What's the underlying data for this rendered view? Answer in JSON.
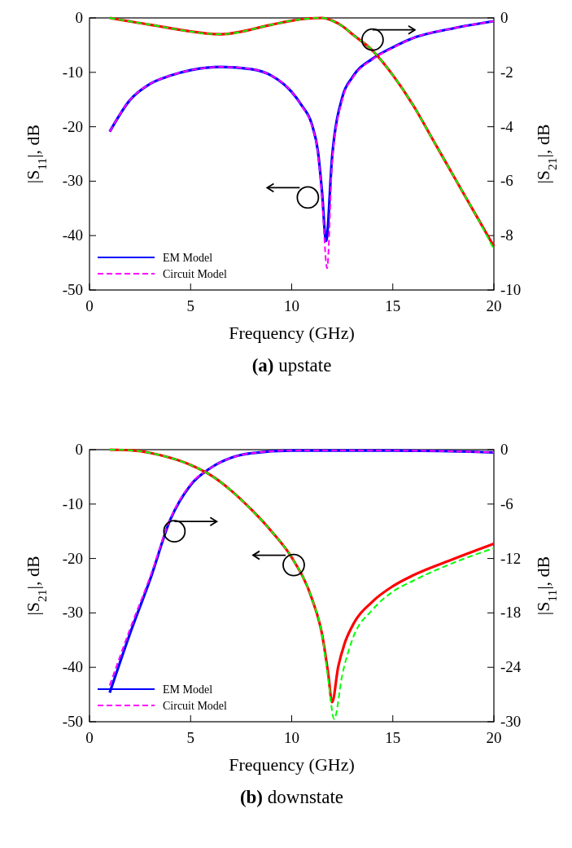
{
  "chart_data": [
    {
      "type": "line",
      "title": "(a) upstate",
      "xlabel": "Frequency (GHz)",
      "ylabel": "|S$_{11}$|, dB",
      "y2label": "|S$_{21}$|, dB",
      "xlim": [
        0,
        20
      ],
      "xticks": [
        0,
        5,
        10,
        15,
        20
      ],
      "ylim": [
        -50,
        0
      ],
      "yticks": [
        -50,
        -40,
        -30,
        -20,
        -10,
        0
      ],
      "y2lim": [
        -10,
        0
      ],
      "y2ticks": [
        -10,
        -8,
        -6,
        -4,
        -2,
        0
      ],
      "legend": "bottom left",
      "grid": false,
      "series": [
        {
          "name": "EM Model",
          "color": "#0000ff",
          "line_style": "solid",
          "x": [
            1,
            2,
            3,
            4,
            5,
            6.5,
            8,
            9,
            10,
            10.5,
            11,
            11.3,
            11.5,
            11.7,
            12,
            12.5,
            13,
            14,
            15,
            16,
            18,
            20
          ],
          "values": [
            -20.9,
            -15.1,
            -12.1,
            -10.6,
            -9.6,
            -9.0,
            -9.4,
            -10.6,
            -13.6,
            -16.1,
            -19.6,
            -24.6,
            -32,
            -41,
            -25.5,
            -14.6,
            -10.9,
            -7.5,
            -5.4,
            -3.7,
            -1.9,
            -0.6
          ]
        },
        {
          "name": "Circuit Model",
          "color": "#ff00ff",
          "line_style": "dashed",
          "x": [
            1,
            2,
            3,
            4,
            5,
            6.5,
            8,
            9,
            10,
            10.5,
            11,
            11.3,
            11.5,
            11.75,
            12,
            12.5,
            13,
            14,
            15,
            16,
            18,
            20
          ],
          "values": [
            -20.9,
            -15.1,
            -12.1,
            -10.6,
            -9.6,
            -9.0,
            -9.4,
            -10.6,
            -13.6,
            -16.2,
            -19.8,
            -25,
            -33,
            -46,
            -26.5,
            -15,
            -11.1,
            -7.6,
            -5.5,
            -3.7,
            -1.9,
            -0.6
          ]
        },
        {
          "color": "#ff0000",
          "line_style": "solid",
          "axis": "y2",
          "x": [
            1,
            3,
            6.5,
            9,
            10,
            11.5,
            12,
            12.5,
            13,
            14,
            15,
            16,
            17,
            18,
            19,
            20
          ],
          "values": [
            0,
            -0.25,
            -0.6,
            -0.25,
            -0.1,
            0,
            -0.1,
            -0.3,
            -0.6,
            -1.2,
            -2.1,
            -3.2,
            -4.5,
            -5.8,
            -7.1,
            -8.4
          ]
        },
        {
          "color": "#00ff00",
          "line_style": "dashed",
          "axis": "y2",
          "x": [
            1,
            3,
            6.5,
            9,
            10,
            11.5,
            12,
            12.5,
            13,
            14,
            15,
            16,
            17,
            18,
            19,
            20
          ],
          "values": [
            0,
            -0.25,
            -0.6,
            -0.25,
            -0.1,
            0,
            -0.1,
            -0.3,
            -0.6,
            -1.2,
            -2.1,
            -3.2,
            -4.5,
            -5.8,
            -7.1,
            -8.5
          ]
        }
      ]
    },
    {
      "type": "line",
      "title": "(b) downstate",
      "xlabel": "Frequency (GHz)",
      "ylabel": "|S$_{21}$|, dB",
      "y2label": "|S$_{11}$|, dB",
      "xlim": [
        0,
        20
      ],
      "xticks": [
        0,
        5,
        10,
        15,
        20
      ],
      "ylim": [
        -50,
        0
      ],
      "yticks": [
        -50,
        -40,
        -30,
        -20,
        -10,
        0
      ],
      "y2lim": [
        -30,
        0
      ],
      "y2ticks": [
        -30,
        -24,
        -18,
        -12,
        -6,
        0
      ],
      "legend": "bottom left",
      "grid": false,
      "series": [
        {
          "name": "EM Model",
          "color": "#0000ff",
          "line_style": "solid",
          "axis": "y2",
          "x": [
            1,
            2,
            3,
            4,
            5,
            6,
            7,
            8,
            10,
            15,
            20
          ],
          "values": [
            -26.8,
            -20.3,
            -14.3,
            -7.7,
            -3.9,
            -2.0,
            -0.9,
            -0.4,
            -0.1,
            -0.1,
            -0.3
          ]
        },
        {
          "name": "Circuit Model",
          "color": "#ff00ff",
          "line_style": "dashed",
          "axis": "y2",
          "x": [
            1,
            2,
            3,
            4,
            5,
            6,
            7,
            8,
            10,
            15,
            20
          ],
          "values": [
            -26.0,
            -19.8,
            -14.0,
            -7.6,
            -3.8,
            -2.0,
            -0.9,
            -0.4,
            -0.1,
            -0.1,
            -0.3
          ]
        },
        {
          "color": "#ff0000",
          "line_style": "solid",
          "x": [
            1,
            2,
            3,
            4,
            5,
            6,
            7,
            8,
            9,
            10,
            11,
            11.5,
            11.8,
            12,
            12.3,
            12.6,
            13,
            14,
            15,
            16,
            18,
            20
          ],
          "values": [
            0,
            -0.1,
            -0.6,
            -1.5,
            -2.8,
            -4.7,
            -7.5,
            -11,
            -15,
            -19.8,
            -27.4,
            -33.9,
            -41,
            -46.4,
            -39.9,
            -35.8,
            -32.4,
            -27.9,
            -25.1,
            -23.1,
            -20.1,
            -17.3
          ]
        },
        {
          "color": "#00ff00",
          "line_style": "dashed",
          "x": [
            1,
            2,
            3,
            4,
            5,
            6,
            7,
            8,
            9,
            10,
            11,
            11.5,
            11.8,
            12.1,
            12.5,
            13,
            14,
            15,
            16,
            18,
            20
          ],
          "values": [
            0,
            -0.1,
            -0.6,
            -1.5,
            -2.8,
            -4.7,
            -7.5,
            -11,
            -15,
            -19.8,
            -27.4,
            -34,
            -42,
            -49.5,
            -41.4,
            -34.9,
            -29.4,
            -26.1,
            -24.1,
            -20.8,
            -18.1
          ]
        }
      ]
    }
  ]
}
